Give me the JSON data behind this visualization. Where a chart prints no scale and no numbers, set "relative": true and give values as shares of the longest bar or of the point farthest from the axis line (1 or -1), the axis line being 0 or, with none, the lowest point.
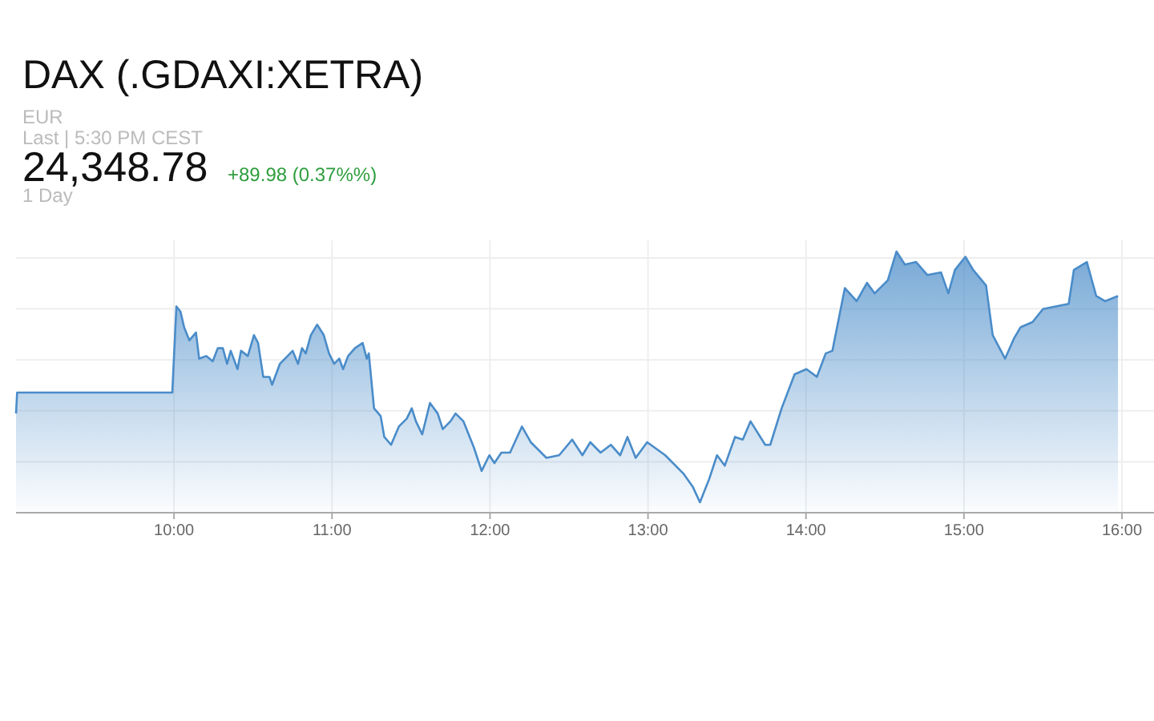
{
  "chart_data": {
    "type": "area",
    "title": "DAX (.GDAXI:XETRA)",
    "annotations": [
      "EUR",
      "Last | 5:30 PM CEST",
      "24,348.78",
      "+89.98 (0.37%%)",
      "1 Day"
    ],
    "relative": true,
    "grid": true,
    "xlim": [
      9,
      16
    ],
    "xticks": [
      {
        "value": 10,
        "label": "10:00"
      },
      {
        "value": 11,
        "label": "11:00"
      },
      {
        "value": 12,
        "label": "12:00"
      },
      {
        "value": 13,
        "label": "13:00"
      },
      {
        "value": 14,
        "label": "14:00"
      },
      {
        "value": 15,
        "label": "15:00"
      },
      {
        "value": 16,
        "label": "16:00"
      }
    ],
    "series": [
      {
        "color": "#4a8cc9",
        "x": [
          9.0,
          9.007,
          9.989,
          10.015,
          10.041,
          10.064,
          10.097,
          10.139,
          10.159,
          10.205,
          10.245,
          10.277,
          10.309,
          10.336,
          10.359,
          10.402,
          10.424,
          10.467,
          10.506,
          10.532,
          10.565,
          10.604,
          10.621,
          10.67,
          10.719,
          10.751,
          10.785,
          10.81,
          10.834,
          10.866,
          10.906,
          10.948,
          10.981,
          11.014,
          11.046,
          11.07,
          11.102,
          11.145,
          11.194,
          11.22,
          11.233,
          11.266,
          11.308,
          11.331,
          11.374,
          11.423,
          11.473,
          11.505,
          11.531,
          11.571,
          11.62,
          11.669,
          11.701,
          11.75,
          11.782,
          11.832,
          11.898,
          11.947,
          11.996,
          12.028,
          12.072,
          12.127,
          12.202,
          12.258,
          12.357,
          12.438,
          12.52,
          12.585,
          12.635,
          12.7,
          12.765,
          12.824,
          12.87,
          12.922,
          12.995,
          13.109,
          13.224,
          13.283,
          13.329,
          13.388,
          13.437,
          13.486,
          13.551,
          13.6,
          13.649,
          13.742,
          13.774,
          13.846,
          13.928,
          14.003,
          14.069,
          14.125,
          14.167,
          14.246,
          14.321,
          14.386,
          14.435,
          14.518,
          14.573,
          14.626,
          14.697,
          14.769,
          14.855,
          14.901,
          14.943,
          15.009,
          15.058,
          15.14,
          15.182,
          15.26,
          15.319,
          15.358,
          15.434,
          15.5,
          15.581,
          15.663,
          15.696,
          15.778,
          15.837,
          15.893,
          15.975
        ],
        "values": [
          0.38,
          0.46,
          0.46,
          0.79,
          0.77,
          0.71,
          0.66,
          0.69,
          0.59,
          0.6,
          0.58,
          0.63,
          0.63,
          0.57,
          0.62,
          0.55,
          0.62,
          0.6,
          0.68,
          0.65,
          0.52,
          0.52,
          0.49,
          0.57,
          0.6,
          0.62,
          0.57,
          0.63,
          0.61,
          0.68,
          0.72,
          0.68,
          0.61,
          0.57,
          0.59,
          0.55,
          0.6,
          0.63,
          0.65,
          0.59,
          0.61,
          0.4,
          0.37,
          0.29,
          0.26,
          0.33,
          0.36,
          0.4,
          0.35,
          0.3,
          0.42,
          0.38,
          0.32,
          0.35,
          0.38,
          0.35,
          0.25,
          0.16,
          0.22,
          0.19,
          0.23,
          0.23,
          0.33,
          0.27,
          0.21,
          0.22,
          0.28,
          0.22,
          0.27,
          0.23,
          0.26,
          0.22,
          0.29,
          0.21,
          0.27,
          0.22,
          0.15,
          0.1,
          0.04,
          0.13,
          0.22,
          0.18,
          0.29,
          0.28,
          0.35,
          0.26,
          0.26,
          0.4,
          0.53,
          0.55,
          0.52,
          0.61,
          0.62,
          0.86,
          0.81,
          0.88,
          0.84,
          0.89,
          1.0,
          0.95,
          0.96,
          0.91,
          0.92,
          0.84,
          0.93,
          0.98,
          0.93,
          0.87,
          0.68,
          0.59,
          0.67,
          0.71,
          0.73,
          0.78,
          0.79,
          0.8,
          0.93,
          0.96,
          0.83,
          0.81,
          0.83
        ]
      }
    ]
  }
}
